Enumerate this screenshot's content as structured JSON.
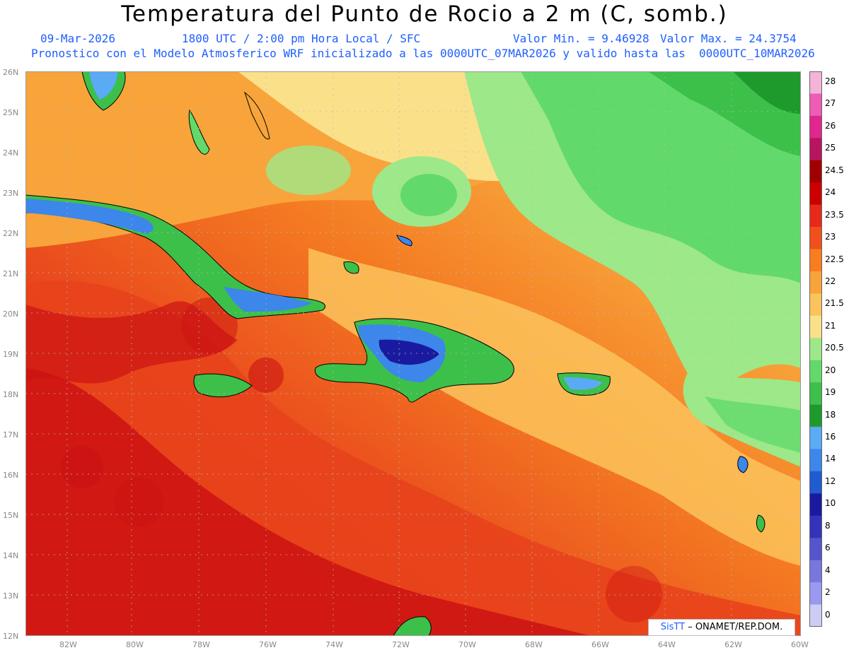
{
  "header": {
    "title": "Temperatura del Punto de Rocio a 2 m (C, somb.)",
    "date": "09-Mar-2026",
    "valid_time": "1800 UTC / 2:00 pm Hora Local / SFC",
    "min_value": "Valor Min. = 9.46928",
    "max_value": "Valor Max. = 24.3754",
    "forecast_note": "Pronostico con el Modelo Atmosferico WRF inicializado a las 0000UTC_07MAR2026 y valido hasta las  0000UTC_10MAR2026"
  },
  "axes": {
    "lat_labels": [
      "26N",
      "25N",
      "24N",
      "23N",
      "22N",
      "21N",
      "20N",
      "19N",
      "18N",
      "17N",
      "16N",
      "15N",
      "14N",
      "13N",
      "12N"
    ],
    "lon_labels": [
      "82W",
      "80W",
      "78W",
      "76W",
      "74W",
      "72W",
      "70W",
      "68W",
      "66W",
      "64W",
      "62W",
      "60W"
    ]
  },
  "colorbar": {
    "labels": [
      "28",
      "27",
      "26",
      "25",
      "24.5",
      "24",
      "23.5",
      "23",
      "22.5",
      "22",
      "21.5",
      "21",
      "20.5",
      "20",
      "19",
      "18",
      "16",
      "14",
      "12",
      "10",
      "8",
      "6",
      "4",
      "2",
      "0"
    ],
    "colors": [
      "#f4b3d8",
      "#ee5cb6",
      "#e0268f",
      "#b8155f",
      "#a00000",
      "#cc0000",
      "#e62a1a",
      "#f0501c",
      "#f77d1f",
      "#f8a43a",
      "#fbc35a",
      "#fbe08a",
      "#9de889",
      "#62d96b",
      "#3cc04a",
      "#1e9a2c",
      "#5aaaf5",
      "#3d86ea",
      "#1e5ccf",
      "#1a1aa0",
      "#3333bb",
      "#5555cc",
      "#7777dd",
      "#9999ee",
      "#ccccf5"
    ]
  },
  "palette": {
    "sea_warm": "#e8431c",
    "sea_hot": "#cc1212",
    "sea_mid": "#f47a22",
    "orange": "#f8a43a",
    "yellow": "#fbe08a",
    "light_green": "#9de889",
    "green": "#62d96b",
    "dark_green": "#3cc04a",
    "darker_green": "#1e9a2c",
    "blue": "#5aaaf5",
    "deep_blue": "#3d86ea",
    "navy": "#1a1aa0"
  },
  "credit": {
    "brand": "SisTT",
    "text": " – ONAMET/REP.DOM."
  }
}
